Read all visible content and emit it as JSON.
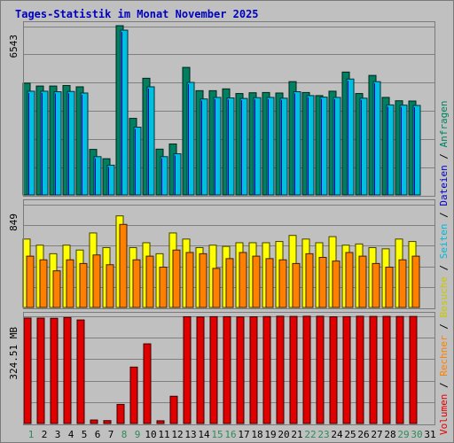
{
  "chart_data": {
    "type": "bar",
    "title": "Tages-Statistik im Monat November 2025",
    "categories": [
      "1",
      "2",
      "3",
      "4",
      "5",
      "6",
      "7",
      "8",
      "9",
      "10",
      "11",
      "12",
      "13",
      "14",
      "15",
      "16",
      "17",
      "18",
      "19",
      "20",
      "21",
      "22",
      "23",
      "24",
      "25",
      "26",
      "27",
      "28",
      "29",
      "30",
      "31"
    ],
    "weekend_days": [
      "1",
      "8",
      "9",
      "15",
      "16",
      "22",
      "23",
      "29",
      "30"
    ],
    "category_colors": {
      "weekday": "#000000",
      "weekend": "#2e8b57"
    },
    "panels": [
      {
        "name": "top",
        "max_label": "6543",
        "ymax": 6543,
        "series": [
          {
            "name": "Anfragen",
            "color": "#008060",
            "values": [
              4320,
              4210,
              4210,
              4230,
              4180,
              1760,
              1400,
              6543,
              2960,
              4510,
              1770,
              1970,
              4930,
              4030,
              4030,
              4100,
              3920,
              3950,
              3960,
              3940,
              4380,
              3960,
              3840,
              4010,
              4750,
              3920,
              4620,
              3770,
              3640,
              3630,
              null
            ]
          },
          {
            "name": "Dateien",
            "color": "#0000c0",
            "values": [
              4010,
              4010,
              3990,
              4000,
              3940,
              1480,
              1150,
              6370,
              2620,
              4180,
              1480,
              1590,
              4350,
              3710,
              3770,
              3750,
              3730,
              3760,
              3770,
              3740,
              3990,
              3840,
              3780,
              3770,
              4480,
              3740,
              4380,
              3480,
              3470,
              3460,
              null
            ]
          },
          {
            "name": "Seiten",
            "color": "#00c0e0",
            "values": [
              4010,
              4010,
              3990,
              4000,
              3940,
              1480,
              1150,
              6370,
              2620,
              4180,
              1480,
              1590,
              4350,
              3710,
              3770,
              3750,
              3730,
              3760,
              3770,
              3740,
              3990,
              3840,
              3780,
              3770,
              4480,
              3740,
              4380,
              3480,
              3470,
              3460,
              null
            ]
          }
        ]
      },
      {
        "name": "middle",
        "max_label": "849",
        "ymax": 849,
        "series": [
          {
            "name": "Besuche",
            "color": "#ffff00",
            "values": [
              560,
              510,
              440,
              510,
              470,
              610,
              490,
              750,
              490,
              530,
              440,
              610,
              560,
              490,
              510,
              500,
              530,
              530,
              530,
              540,
              590,
              560,
              530,
              580,
              510,
              520,
              490,
              480,
              560,
              540,
              null
            ]
          },
          {
            "name": "Rechner",
            "color": "#ff8000",
            "values": [
              420,
              390,
              300,
              390,
              360,
              430,
              350,
              680,
              390,
              420,
              330,
              470,
              450,
              440,
              320,
              400,
              450,
              420,
              400,
              390,
              360,
              440,
              410,
              380,
              450,
              420,
              360,
              330,
              390,
              420,
              null
            ]
          }
        ]
      },
      {
        "name": "bottom",
        "max_label": "324.51 MB",
        "ymax": 324.51,
        "series": [
          {
            "name": "Volumen",
            "color": "#e00000",
            "values": [
              316.6,
              316.4,
              315.9,
              318.2,
              310.9,
              10.5,
              8.7,
              57.4,
              169.4,
              239.2,
              8.2,
              81.8,
              320.6,
              319.8,
              320.8,
              320.7,
              319.9,
              320.5,
              321.0,
              322.0,
              321.5,
              322.0,
              321.9,
              320.4,
              320.8,
              321.9,
              321.5,
              321.5,
              321.2,
              321.4,
              null
            ]
          }
        ]
      }
    ],
    "side_legend": [
      {
        "text": "Volumen",
        "color": "#e00000"
      },
      {
        "text": " / ",
        "color": "#000000"
      },
      {
        "text": "Rechner",
        "color": "#ff8000"
      },
      {
        "text": " / ",
        "color": "#000000"
      },
      {
        "text": "Besuche",
        "color": "#c8c800"
      },
      {
        "text": " / ",
        "color": "#000000"
      },
      {
        "text": "Seiten",
        "color": "#00b8d8"
      },
      {
        "text": " / ",
        "color": "#000000"
      },
      {
        "text": "Dateien",
        "color": "#0000c0"
      },
      {
        "text": " / ",
        "color": "#000000"
      },
      {
        "text": "Anfragen",
        "color": "#008060"
      }
    ],
    "grid": true,
    "legend_position": "right-vertical"
  }
}
